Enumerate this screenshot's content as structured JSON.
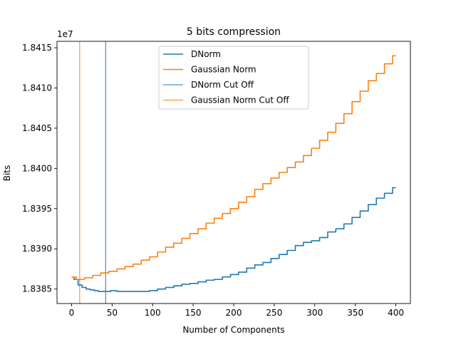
{
  "chart_data": {
    "type": "line",
    "title": "5 bits compression",
    "xlabel": "Number of Components",
    "ylabel": "Bits",
    "y_offset_label": "1e7",
    "xlim": [
      -18,
      418
    ],
    "ylim": [
      1.83832,
      1.84158
    ],
    "x_ticks": [
      0,
      50,
      100,
      150,
      200,
      250,
      300,
      350,
      400
    ],
    "x_tick_labels": [
      "0",
      "50",
      "100",
      "150",
      "200",
      "250",
      "300",
      "350",
      "400"
    ],
    "y_ticks": [
      1.8385,
      1.839,
      1.8395,
      1.84,
      1.8405,
      1.841,
      1.8415
    ],
    "y_tick_labels": [
      "1.8385",
      "1.8390",
      "1.8395",
      "1.8400",
      "1.8405",
      "1.8410",
      "1.8415"
    ],
    "grid": false,
    "legend_position": "upper-center",
    "series": [
      {
        "name": "DNorm",
        "color": "#1f77b4",
        "x": [
          0,
          5,
          10,
          15,
          20,
          25,
          30,
          35,
          40,
          45,
          50,
          60,
          70,
          80,
          90,
          100,
          110,
          120,
          130,
          140,
          150,
          160,
          170,
          180,
          190,
          200,
          210,
          220,
          230,
          240,
          250,
          260,
          270,
          280,
          290,
          300,
          310,
          320,
          330,
          340,
          350,
          360,
          370,
          380,
          390,
          400
        ],
        "y": [
          1.83865,
          1.83862,
          1.83855,
          1.83852,
          1.8385,
          1.83849,
          1.83848,
          1.83847,
          1.83847,
          1.83847,
          1.83848,
          1.83847,
          1.83847,
          1.83847,
          1.83847,
          1.83848,
          1.8385,
          1.83852,
          1.83854,
          1.83856,
          1.83857,
          1.83859,
          1.83861,
          1.83862,
          1.83865,
          1.83868,
          1.83871,
          1.83876,
          1.8388,
          1.83883,
          1.83888,
          1.83893,
          1.83898,
          1.83904,
          1.83908,
          1.8391,
          1.83914,
          1.83921,
          1.83925,
          1.83931,
          1.83939,
          1.83947,
          1.83955,
          1.83963,
          1.83969,
          1.83976
        ]
      },
      {
        "name": "Gaussian Norm",
        "color": "#ff7f0e",
        "x": [
          0,
          10,
          20,
          30,
          40,
          50,
          60,
          70,
          80,
          90,
          100,
          110,
          120,
          130,
          140,
          150,
          160,
          170,
          180,
          190,
          200,
          210,
          220,
          230,
          240,
          250,
          260,
          270,
          280,
          290,
          300,
          310,
          320,
          330,
          340,
          350,
          360,
          370,
          380,
          390,
          400
        ],
        "y": [
          1.83865,
          1.83862,
          1.83864,
          1.83867,
          1.8387,
          1.83872,
          1.83875,
          1.83878,
          1.83881,
          1.83886,
          1.8389,
          1.83896,
          1.83902,
          1.83907,
          1.83913,
          1.83919,
          1.83925,
          1.83932,
          1.83938,
          1.83944,
          1.8395,
          1.83958,
          1.83965,
          1.83974,
          1.83981,
          1.83988,
          1.83995,
          1.84001,
          1.84008,
          1.84016,
          1.84025,
          1.84035,
          1.84045,
          1.84056,
          1.84068,
          1.84083,
          1.84096,
          1.84109,
          1.84118,
          1.8413,
          1.8414
        ]
      }
    ],
    "cutoffs": [
      {
        "name": "DNorm Cut Off",
        "color": "#1f77b4",
        "x": 42
      },
      {
        "name": "Gaussian Norm Cut Off",
        "color": "#ff7f0e",
        "x": 10
      }
    ]
  }
}
